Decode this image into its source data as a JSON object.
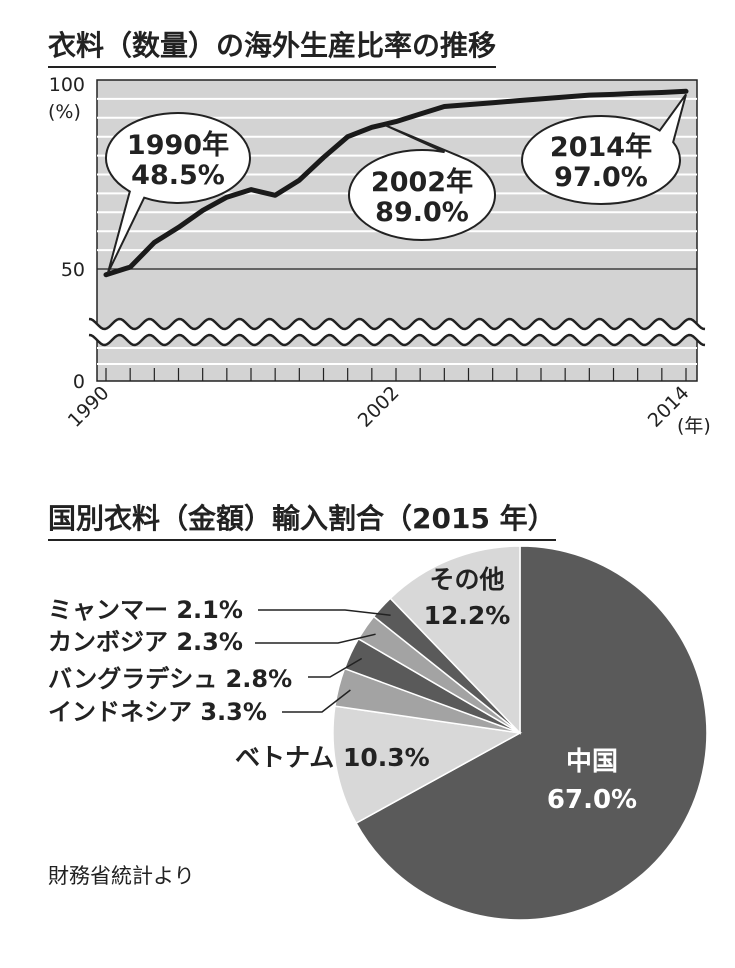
{
  "line_chart_title": "衣料（数量）の海外生産比率の推移",
  "pie_chart_title": "国別衣料（金額）輸入割合（2015 年）",
  "source_note": "財務省統計より",
  "chart_data": [
    {
      "type": "line",
      "title": "衣料（数量）の海外生産比率の推移",
      "y_unit": "(%)",
      "x_unit": "(年)",
      "x_ticks": [
        "1990",
        "2002",
        "2014"
      ],
      "y_ticks": [
        "100",
        "50",
        "0"
      ],
      "ylim": [
        0,
        100
      ],
      "y_axis_break": true,
      "grid": true,
      "series": [
        {
          "x": [
            1990,
            1991,
            1992,
            1993,
            1994,
            1995,
            1996,
            1997,
            1998,
            1999,
            2000,
            2001,
            2002,
            2003,
            2004,
            2005,
            2006,
            2007,
            2008,
            2009,
            2010,
            2011,
            2012,
            2013,
            2014
          ],
          "values": [
            48.5,
            50.5,
            57.0,
            61.0,
            65.5,
            69.0,
            71.0,
            69.5,
            73.5,
            79.5,
            85.0,
            87.5,
            89.0,
            91.0,
            93.0,
            93.5,
            94.0,
            94.5,
            95.0,
            95.5,
            96.0,
            96.2,
            96.5,
            96.7,
            97.0
          ]
        }
      ],
      "callouts": [
        {
          "year": "1990年",
          "value": "48.5%"
        },
        {
          "year": "2002年",
          "value": "89.0%"
        },
        {
          "year": "2014年",
          "value": "97.0%"
        }
      ],
      "colors": {
        "plot_bg": "#d3d3d3",
        "line": "#1a1a1a"
      }
    },
    {
      "type": "pie",
      "title": "国別衣料（金額）輸入割合（2015 年）",
      "slices": [
        {
          "label": "中国",
          "value": 67.0,
          "text": "67.0%",
          "color": "#5a5a5a"
        },
        {
          "label": "ベトナム",
          "value": 10.3,
          "text": "10.3%",
          "color": "#d8d8d8"
        },
        {
          "label": "インドネシア",
          "value": 3.3,
          "text": "3.3%",
          "color": "#a3a3a3"
        },
        {
          "label": "バングラデシュ",
          "value": 2.8,
          "text": "2.8%",
          "color": "#5a5a5a"
        },
        {
          "label": "カンボジア",
          "value": 2.3,
          "text": "2.3%",
          "color": "#a3a3a3"
        },
        {
          "label": "ミャンマー",
          "value": 2.1,
          "text": "2.1%",
          "color": "#5a5a5a"
        },
        {
          "label": "その他",
          "value": 12.2,
          "text": "12.2%",
          "color": "#d8d8d8"
        }
      ]
    }
  ]
}
